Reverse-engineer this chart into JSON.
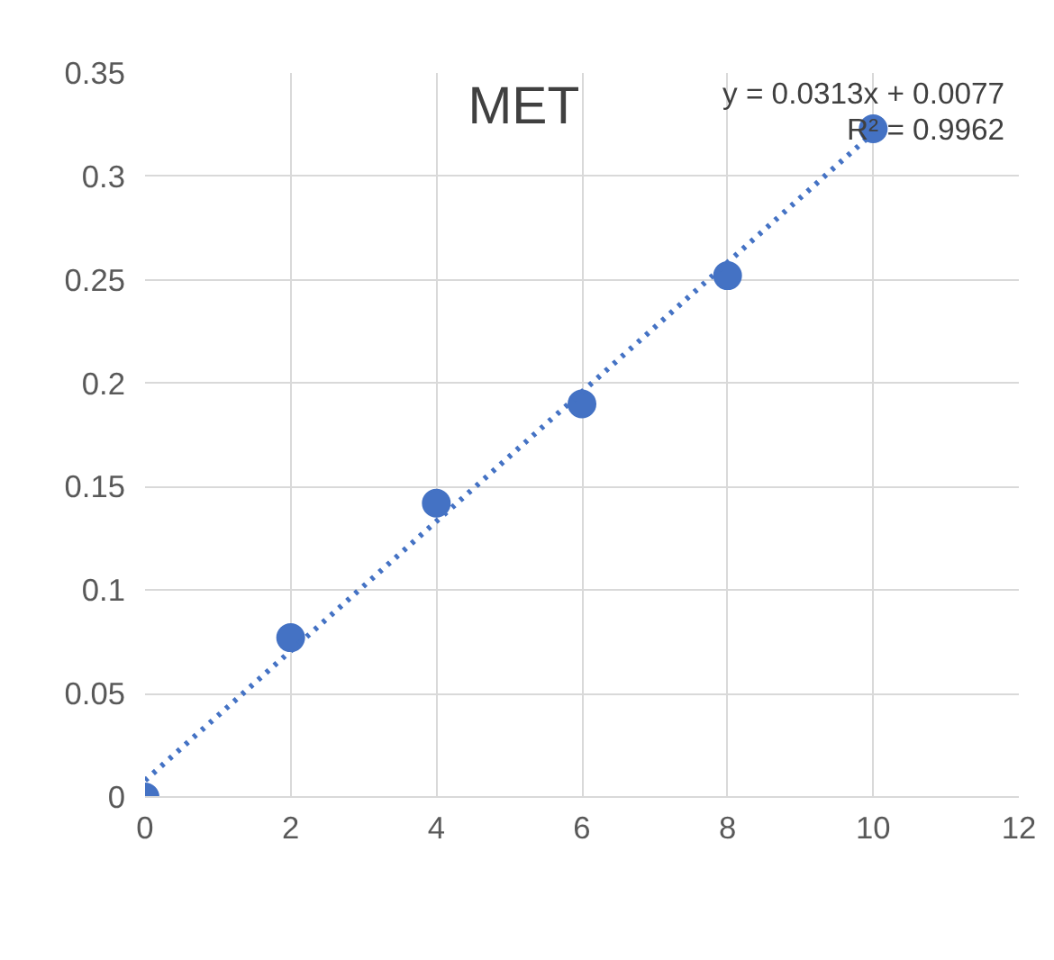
{
  "chart_data": {
    "type": "scatter",
    "title": "MET",
    "annotations": [
      "y = 0.0313x + 0.0077",
      "R² = 0.9962"
    ],
    "series": [
      {
        "color": "#4472c4",
        "marker": "circle",
        "x": [
          0,
          2,
          4,
          6,
          8,
          10
        ],
        "values": [
          0,
          0.077,
          0.142,
          0.19,
          0.252,
          0.323
        ]
      },
      {
        "type": "line",
        "color": "#4472c4",
        "marker": "none",
        "line_style": "dotted",
        "x": [
          0,
          10
        ],
        "values": [
          0.008,
          0.321
        ]
      }
    ],
    "xlim": [
      0,
      12
    ],
    "xticks": [
      0,
      2,
      4,
      6,
      8,
      10,
      12
    ],
    "ylim": [
      0,
      0.35
    ],
    "yticks": [
      0,
      0.05,
      0.1,
      0.15,
      0.2,
      0.25,
      0.3,
      0.35
    ],
    "grid": true
  }
}
